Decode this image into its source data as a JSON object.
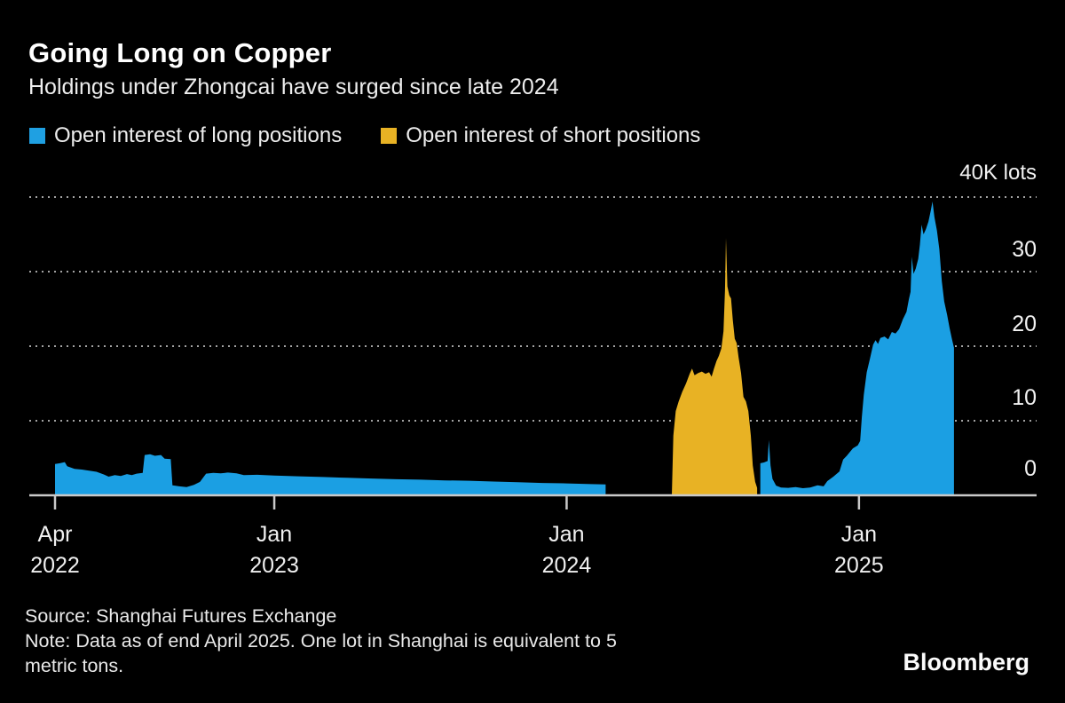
{
  "page": {
    "background": "#000000"
  },
  "header": {
    "title": "Going Long on Copper",
    "subtitle": "Holdings under Zhongcai have surged since late 2024"
  },
  "legend": [
    {
      "label": "Open interest of long positions",
      "color": "#1fa0e2"
    },
    {
      "label": "Open interest of short positions",
      "color": "#e8b224"
    }
  ],
  "footer": {
    "source": "Source: Shanghai Futures Exchange",
    "note_lines": [
      "Note: Data as of end April 2025. One lot in Shanghai is equivalent to 5",
      "metric tons."
    ],
    "brand": "Bloomberg"
  },
  "chart_data": {
    "type": "area",
    "title": "Going Long on Copper",
    "subtitle": "Holdings under Zhongcai have surged since late 2024",
    "unit": "thousand lots (K lots)",
    "y_labels": [
      "40K lots",
      "30",
      "20",
      "10",
      "0"
    ],
    "y_axis": {
      "min": 0,
      "max": 40,
      "tick_values": [
        0,
        10,
        20,
        30,
        40
      ],
      "grid": "dotted",
      "label_side": "right"
    },
    "x_axis": {
      "unit": "months since 2022-04",
      "range": [
        0,
        37
      ],
      "ticks": [
        {
          "t": 0,
          "month": "Apr",
          "year": "2022"
        },
        {
          "t": 9,
          "month": "Jan",
          "year": "2023"
        },
        {
          "t": 21,
          "month": "Jan",
          "year": "2024"
        },
        {
          "t": 33,
          "month": "Jan",
          "year": "2025"
        }
      ]
    },
    "series": [
      {
        "name": "Open interest of long positions",
        "color": "#1b9fe3",
        "segments": [
          [
            [
              0,
              4.2
            ],
            [
              0.2,
              4.3
            ],
            [
              0.4,
              4.45
            ],
            [
              0.5,
              3.9
            ],
            [
              0.8,
              3.55
            ],
            [
              1.1,
              3.45
            ],
            [
              1.4,
              3.3
            ],
            [
              1.7,
              3.15
            ],
            [
              2.0,
              2.8
            ],
            [
              2.2,
              2.5
            ],
            [
              2.45,
              2.7
            ],
            [
              2.7,
              2.6
            ],
            [
              2.95,
              2.85
            ],
            [
              3.15,
              2.7
            ],
            [
              3.35,
              2.9
            ],
            [
              3.6,
              3.0
            ],
            [
              3.68,
              5.4
            ],
            [
              3.9,
              5.5
            ],
            [
              4.1,
              5.3
            ],
            [
              4.35,
              5.4
            ],
            [
              4.5,
              4.9
            ],
            [
              4.75,
              4.85
            ],
            [
              4.82,
              1.35
            ],
            [
              5.1,
              1.2
            ],
            [
              5.4,
              1.1
            ],
            [
              5.7,
              1.4
            ],
            [
              5.95,
              1.8
            ],
            [
              6.2,
              2.9
            ],
            [
              6.5,
              3.0
            ],
            [
              6.8,
              2.95
            ],
            [
              7.1,
              3.05
            ],
            [
              7.45,
              2.95
            ],
            [
              7.75,
              2.7
            ],
            [
              8.3,
              2.75
            ],
            [
              9.0,
              2.65
            ],
            [
              10.0,
              2.55
            ],
            [
              11.0,
              2.45
            ],
            [
              12.0,
              2.35
            ],
            [
              13.0,
              2.25
            ],
            [
              14.0,
              2.15
            ],
            [
              15.0,
              2.1
            ],
            [
              16.0,
              2.0
            ],
            [
              17.0,
              1.95
            ],
            [
              18.0,
              1.85
            ],
            [
              19.0,
              1.75
            ],
            [
              20.0,
              1.65
            ],
            [
              21.0,
              1.6
            ],
            [
              22.0,
              1.5
            ],
            [
              22.6,
              1.45
            ]
          ],
          [
            [
              28.95,
              4.3
            ],
            [
              29.1,
              4.4
            ],
            [
              29.25,
              4.6
            ],
            [
              29.3,
              7.4
            ],
            [
              29.37,
              4.0
            ],
            [
              29.45,
              2.2
            ],
            [
              29.6,
              1.3
            ],
            [
              29.8,
              1.05
            ],
            [
              30.1,
              1.0
            ],
            [
              30.4,
              1.1
            ],
            [
              30.7,
              0.95
            ],
            [
              31.0,
              1.05
            ],
            [
              31.3,
              1.35
            ],
            [
              31.55,
              1.2
            ],
            [
              31.7,
              1.9
            ],
            [
              31.95,
              2.5
            ],
            [
              32.2,
              3.2
            ],
            [
              32.35,
              4.8
            ],
            [
              32.5,
              5.3
            ],
            [
              32.75,
              6.3
            ],
            [
              32.95,
              6.7
            ],
            [
              33.05,
              7.3
            ],
            [
              33.12,
              10.5
            ],
            [
              33.2,
              13.5
            ],
            [
              33.32,
              16.5
            ],
            [
              33.45,
              18.3
            ],
            [
              33.58,
              20.2
            ],
            [
              33.68,
              20.8
            ],
            [
              33.78,
              20.3
            ],
            [
              33.88,
              21.1
            ],
            [
              34.05,
              21.3
            ],
            [
              34.2,
              20.9
            ],
            [
              34.35,
              21.9
            ],
            [
              34.5,
              21.7
            ],
            [
              34.65,
              22.3
            ],
            [
              34.8,
              23.6
            ],
            [
              34.95,
              24.6
            ],
            [
              35.05,
              26.3
            ],
            [
              35.12,
              27.3
            ],
            [
              35.17,
              32.0
            ],
            [
              35.24,
              29.7
            ],
            [
              35.33,
              30.4
            ],
            [
              35.43,
              31.7
            ],
            [
              35.5,
              33.6
            ],
            [
              35.57,
              36.3
            ],
            [
              35.65,
              35.0
            ],
            [
              35.75,
              35.7
            ],
            [
              35.85,
              36.7
            ],
            [
              35.95,
              38.2
            ],
            [
              36.02,
              39.4
            ],
            [
              36.1,
              37.3
            ],
            [
              36.2,
              35.5
            ],
            [
              36.3,
              33.0
            ],
            [
              36.4,
              28.7
            ],
            [
              36.5,
              26.0
            ],
            [
              36.62,
              24.2
            ],
            [
              36.72,
              22.4
            ],
            [
              36.82,
              20.9
            ],
            [
              36.9,
              19.8
            ]
          ]
        ]
      },
      {
        "name": "Open interest of short positions",
        "color": "#e8b224",
        "segments": [
          [
            [
              25.32,
              0.0
            ],
            [
              25.38,
              8.0
            ],
            [
              25.48,
              11.3
            ],
            [
              25.6,
              12.6
            ],
            [
              25.75,
              13.9
            ],
            [
              25.9,
              15.0
            ],
            [
              26.05,
              16.3
            ],
            [
              26.15,
              17.0
            ],
            [
              26.25,
              16.1
            ],
            [
              26.4,
              16.4
            ],
            [
              26.55,
              16.6
            ],
            [
              26.7,
              16.3
            ],
            [
              26.85,
              16.5
            ],
            [
              26.95,
              15.9
            ],
            [
              27.05,
              17.0
            ],
            [
              27.15,
              18.0
            ],
            [
              27.25,
              18.7
            ],
            [
              27.35,
              19.7
            ],
            [
              27.44,
              22.0
            ],
            [
              27.5,
              27.5
            ],
            [
              27.54,
              34.5
            ],
            [
              27.6,
              28.0
            ],
            [
              27.68,
              26.8
            ],
            [
              27.75,
              26.4
            ],
            [
              27.82,
              23.5
            ],
            [
              27.9,
              21.0
            ],
            [
              27.98,
              20.4
            ],
            [
              28.06,
              18.5
            ],
            [
              28.16,
              16.4
            ],
            [
              28.26,
              13.2
            ],
            [
              28.36,
              12.6
            ],
            [
              28.46,
              11.3
            ],
            [
              28.56,
              8.0
            ],
            [
              28.64,
              4.0
            ],
            [
              28.74,
              1.8
            ],
            [
              28.82,
              1.0
            ]
          ]
        ]
      }
    ]
  }
}
